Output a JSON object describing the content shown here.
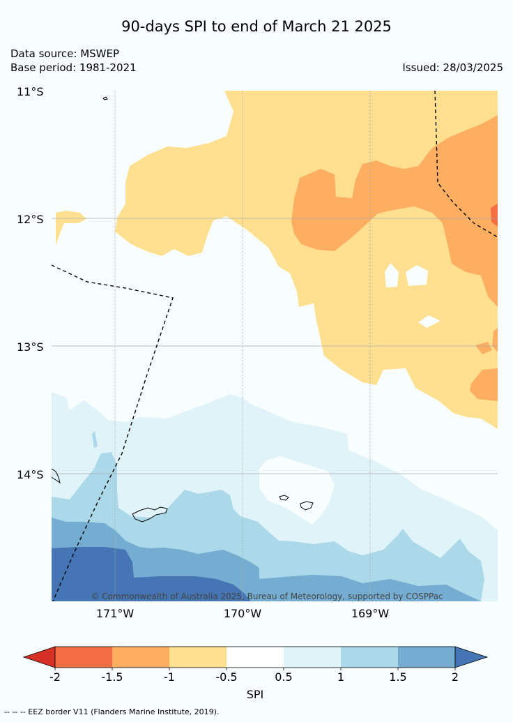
{
  "title": "90-days SPI to end of March 21 2025",
  "data_source": "Data source: MSWEP",
  "base_period": "Base period: 1981-2021",
  "issued": "Issued: 28/03/2025",
  "latitudes": [
    "11°S",
    "12°S",
    "13°S",
    "14°S"
  ],
  "longitudes": [
    "171°W",
    "170°W",
    "169°W"
  ],
  "copyright": "© Commonwealth of Australia 2025, Bureau of Meteorology, supported by COSPPac",
  "colorbar": {
    "label": "SPI",
    "ticks": [
      "-2",
      "-1.5",
      "-1",
      "-0.5",
      "0.5",
      "1",
      "1.5",
      "2"
    ],
    "colors": [
      "#d73027",
      "#f46d43",
      "#fdae61",
      "#fee090",
      "#ffffff",
      "#e0f3f8",
      "#abd9e9",
      "#74add1",
      "#4575b4"
    ]
  },
  "footnote": "-- -- -- EEZ border V11 (Flanders Marine Institute, 2019)."
}
